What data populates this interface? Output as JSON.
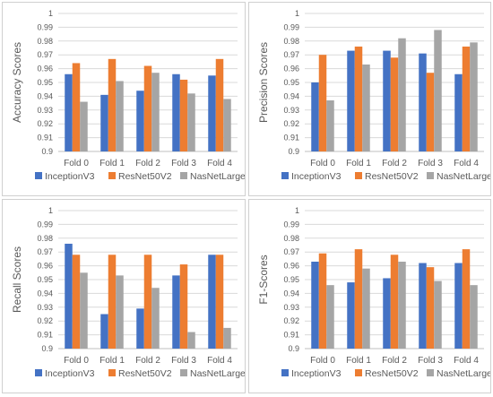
{
  "chart_data": [
    {
      "type": "bar",
      "ylabel": "Accuracy Scores",
      "categories": [
        "Fold 0",
        "Fold 1",
        "Fold 2",
        "Fold 3",
        "Fold 4"
      ],
      "series": [
        {
          "name": "InceptionV3",
          "values": [
            0.956,
            0.941,
            0.944,
            0.956,
            0.955
          ]
        },
        {
          "name": "ResNet50V2",
          "values": [
            0.964,
            0.967,
            0.962,
            0.952,
            0.967
          ]
        },
        {
          "name": "NasNetLarge",
          "values": [
            0.936,
            0.951,
            0.957,
            0.942,
            0.938
          ]
        }
      ],
      "ylim": [
        0.9,
        1
      ],
      "yticks": [
        "0.9",
        "0.91",
        "0.92",
        "0.93",
        "0.94",
        "0.95",
        "0.96",
        "0.97",
        "0.98",
        "0.99",
        "1"
      ],
      "legend": "bottom"
    },
    {
      "type": "bar",
      "ylabel": "Precision Scores",
      "categories": [
        "Fold 0",
        "Fold 1",
        "Fold 2",
        "Fold 3",
        "Fold 4"
      ],
      "series": [
        {
          "name": "InceptionV3",
          "values": [
            0.95,
            0.973,
            0.973,
            0.971,
            0.956
          ]
        },
        {
          "name": "ResNet50V2",
          "values": [
            0.97,
            0.976,
            0.968,
            0.957,
            0.976
          ]
        },
        {
          "name": "NasNetLarge",
          "values": [
            0.937,
            0.963,
            0.982,
            0.988,
            0.979
          ]
        }
      ],
      "ylim": [
        0.9,
        1
      ],
      "yticks": [
        "0.9",
        "0.91",
        "0.92",
        "0.93",
        "0.94",
        "0.95",
        "0.96",
        "0.97",
        "0.98",
        "0.99",
        "1"
      ],
      "legend": "bottom"
    },
    {
      "type": "bar",
      "ylabel": "Recall Scores",
      "categories": [
        "Fold 0",
        "Fold 1",
        "Fold 2",
        "Fold 3",
        "Fold 4"
      ],
      "series": [
        {
          "name": "InceptionV3",
          "values": [
            0.976,
            0.925,
            0.929,
            0.953,
            0.968
          ]
        },
        {
          "name": "ResNet50V2",
          "values": [
            0.968,
            0.968,
            0.968,
            0.961,
            0.968
          ]
        },
        {
          "name": "NasNetLarge",
          "values": [
            0.955,
            0.953,
            0.944,
            0.912,
            0.915
          ]
        }
      ],
      "ylim": [
        0.9,
        1
      ],
      "yticks": [
        "0.9",
        "0.91",
        "0.92",
        "0.93",
        "0.94",
        "0.95",
        "0.96",
        "0.97",
        "0.98",
        "0.99",
        "1"
      ],
      "legend": "bottom"
    },
    {
      "type": "bar",
      "ylabel": "F1-Scores",
      "categories": [
        "Fold 0",
        "Fold 1",
        "Fold 2",
        "Fold 3",
        "Fold 4"
      ],
      "series": [
        {
          "name": "InceptionV3",
          "values": [
            0.963,
            0.948,
            0.951,
            0.962,
            0.962
          ]
        },
        {
          "name": "ResNet50V2",
          "values": [
            0.969,
            0.972,
            0.968,
            0.959,
            0.972
          ]
        },
        {
          "name": "NasNetLarge",
          "values": [
            0.946,
            0.958,
            0.963,
            0.949,
            0.946
          ]
        }
      ],
      "ylim": [
        0.9,
        1
      ],
      "yticks": [
        "0.9",
        "0.91",
        "0.92",
        "0.93",
        "0.94",
        "0.95",
        "0.96",
        "0.97",
        "0.98",
        "0.99",
        "1"
      ],
      "legend": "bottom"
    }
  ],
  "colors": {
    "InceptionV3": "#4472c4",
    "ResNet50V2": "#ed7d31",
    "NasNetLarge": "#a5a5a5",
    "grid": "#d9d9d9",
    "axis": "#bfbfbf",
    "text": "#595959"
  }
}
